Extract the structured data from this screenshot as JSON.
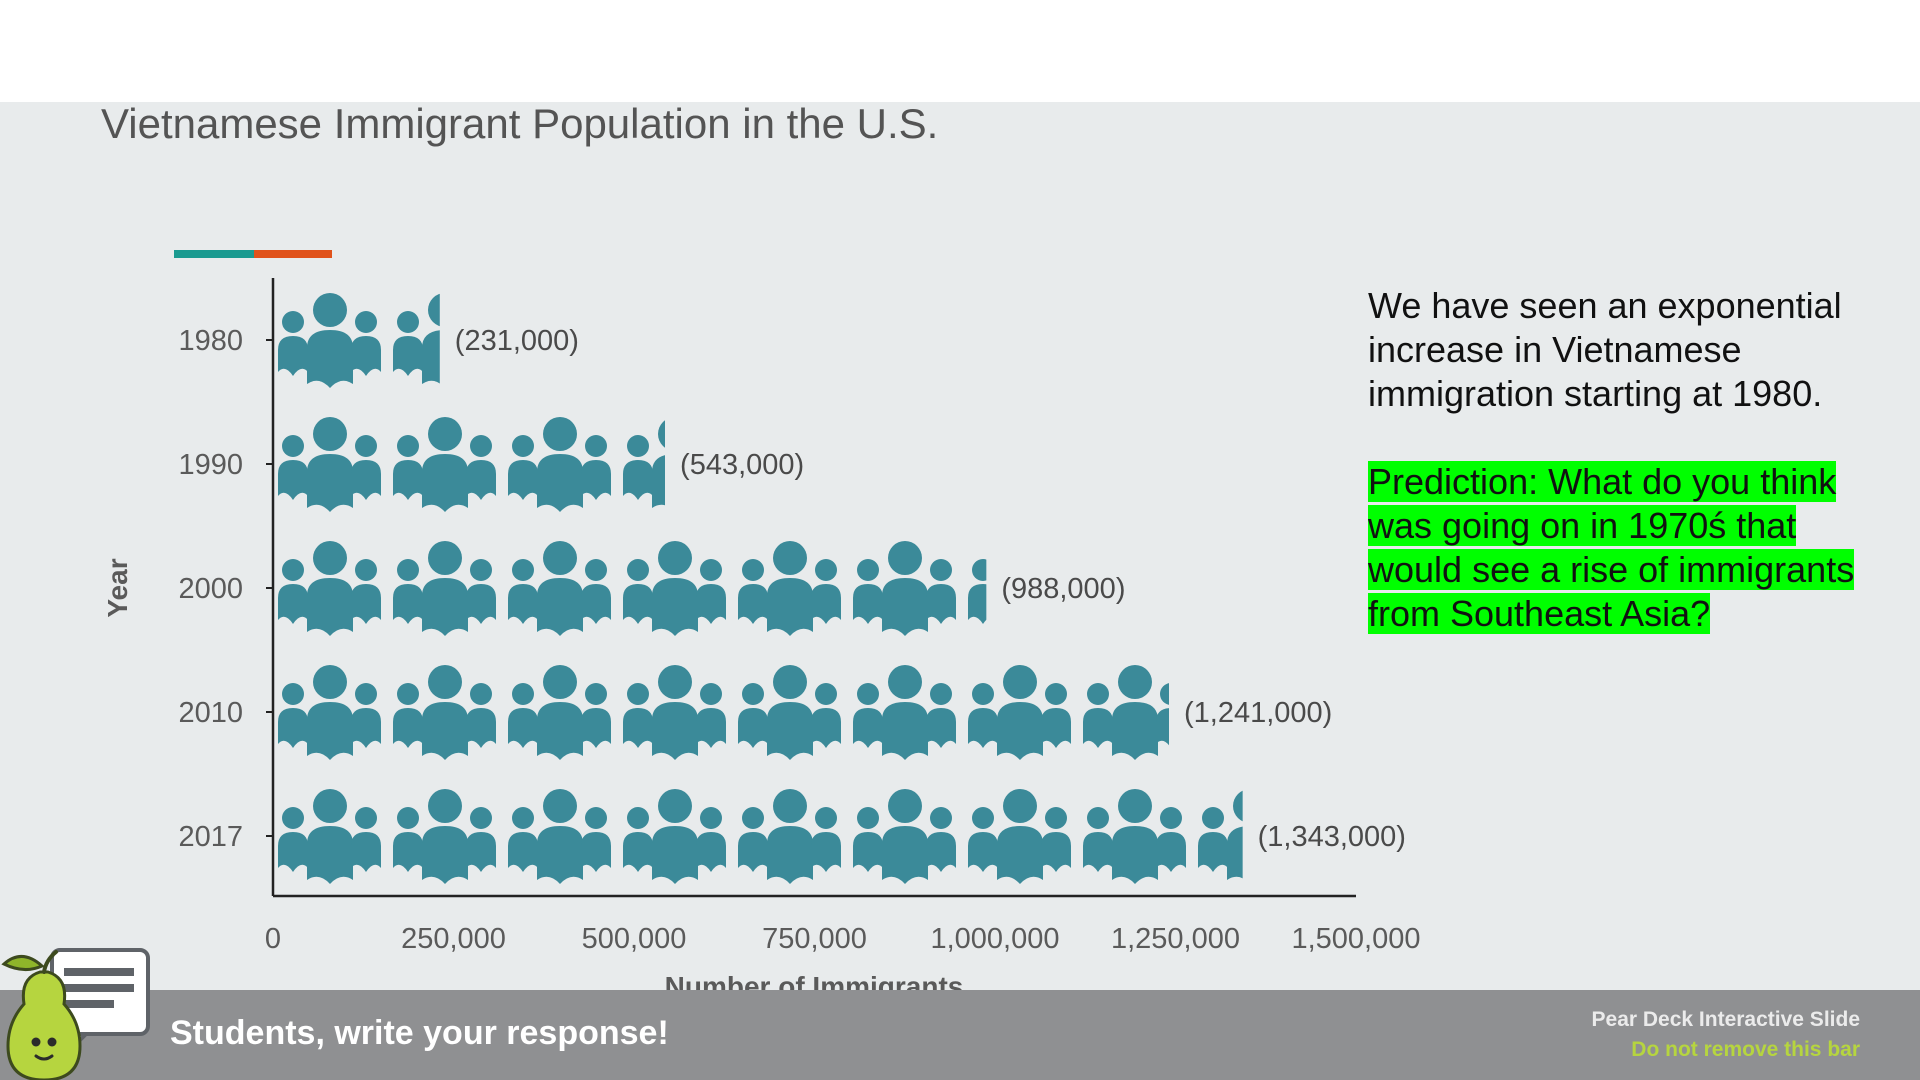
{
  "slide": {
    "title": "Vietnamese Immigrant Population in the U.S."
  },
  "chart_data": {
    "type": "bar",
    "orientation": "horizontal",
    "style": "pictogram",
    "categories": [
      "1980",
      "1990",
      "2000",
      "2010",
      "2017"
    ],
    "values": [
      231000,
      543000,
      988000,
      1241000,
      1343000
    ],
    "value_labels": [
      "(231,000)",
      "(543,000)",
      "(988,000)",
      "(1,241,000)",
      "(1,343,000)"
    ],
    "xlabel": "Number of Immigrants",
    "ylabel": "Year",
    "xlim": [
      0,
      1500000
    ],
    "xticks": [
      0,
      250000,
      500000,
      750000,
      1000000,
      1250000,
      1500000
    ],
    "xtick_labels": [
      "0",
      "250,000",
      "500,000",
      "750,000",
      "1,000,000",
      "1,250,000",
      "1,500,000"
    ],
    "colors": {
      "bar": "#3b8a99",
      "accent_teal": "#1a9a90",
      "accent_orange": "#e0521b",
      "axis": "#222222"
    }
  },
  "note": {
    "intro": "We have seen an exponential increase in Vietnamese immigration starting at 1980.",
    "prediction": "Prediction: What do you think was going on in 1970ś that would see a rise of immigrants from Southeast Asia?",
    "highlight_color": "#00ff00"
  },
  "footer": {
    "cta": "Students, write your response!",
    "brand_line1": "Pear Deck Interactive Slide",
    "brand_line2": "Do not remove this bar"
  }
}
